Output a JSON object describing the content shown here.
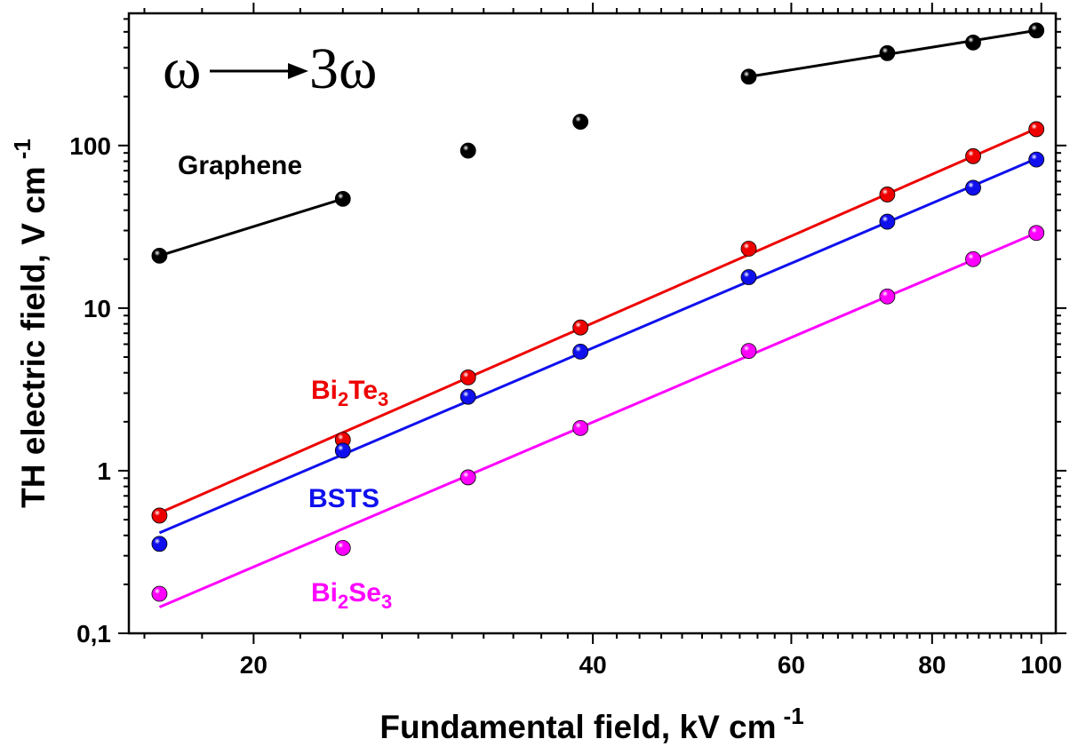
{
  "chart_data": {
    "type": "scatter",
    "xscale": "log",
    "yscale": "log",
    "xlim": [
      15.5,
      103
    ],
    "ylim": [
      0.1,
      650
    ],
    "xlabel": "Fundamental field, kV cm",
    "xlabel_exp": "-1",
    "ylabel": "TH electric field, V cm",
    "ylabel_exp": "-1",
    "x_ticks": [
      20,
      40,
      60,
      80,
      100
    ],
    "x_tick_labels": [
      "20",
      "40",
      "60",
      "80",
      "100"
    ],
    "y_ticks": [
      0.1,
      1,
      10,
      100
    ],
    "y_tick_labels": [
      "0,1",
      "1",
      "10",
      "100"
    ],
    "annotation": {
      "from": "ω",
      "to": "3ω"
    },
    "series": [
      {
        "name": "Graphene",
        "color": "#000000",
        "x": [
          16.5,
          24,
          31,
          39,
          55,
          73,
          87,
          99
        ],
        "y": [
          21,
          47,
          93,
          140,
          265,
          370,
          430,
          510
        ],
        "fits": [
          {
            "x": [
              16.5,
              24
            ],
            "y": [
              21,
              47
            ]
          },
          {
            "x": [
              55,
              99
            ],
            "y": [
              265,
              510
            ]
          }
        ]
      },
      {
        "name_parts": [
          [
            "Bi",
            false
          ],
          [
            "2",
            true
          ],
          [
            "Te",
            false
          ],
          [
            "3",
            true
          ]
        ],
        "color": "#ee0000",
        "x": [
          16.5,
          24,
          31,
          39,
          55,
          73,
          87,
          99
        ],
        "y": [
          0.53,
          1.55,
          3.75,
          7.6,
          23.2,
          50,
          86,
          126
        ],
        "fit": {
          "x": [
            16.5,
            99
          ],
          "y": [
            0.55,
            127
          ]
        }
      },
      {
        "name": "BSTS",
        "color": "#1010ee",
        "x": [
          16.5,
          24,
          31,
          39,
          55,
          73,
          87,
          99
        ],
        "y": [
          0.355,
          1.33,
          2.85,
          5.4,
          15.5,
          34,
          55,
          82
        ],
        "fit": {
          "x": [
            16.5,
            99
          ],
          "y": [
            0.415,
            83
          ]
        }
      },
      {
        "name_parts": [
          [
            "Bi",
            false
          ],
          [
            "2",
            true
          ],
          [
            "Se",
            false
          ],
          [
            "3",
            true
          ]
        ],
        "color": "#ff00ff",
        "x": [
          16.5,
          24,
          31,
          39,
          55,
          73,
          87,
          99
        ],
        "y": [
          0.175,
          0.335,
          0.91,
          1.83,
          5.45,
          11.8,
          20,
          29
        ],
        "fit": {
          "x": [
            16.5,
            99
          ],
          "y": [
            0.145,
            29
          ]
        }
      }
    ]
  }
}
